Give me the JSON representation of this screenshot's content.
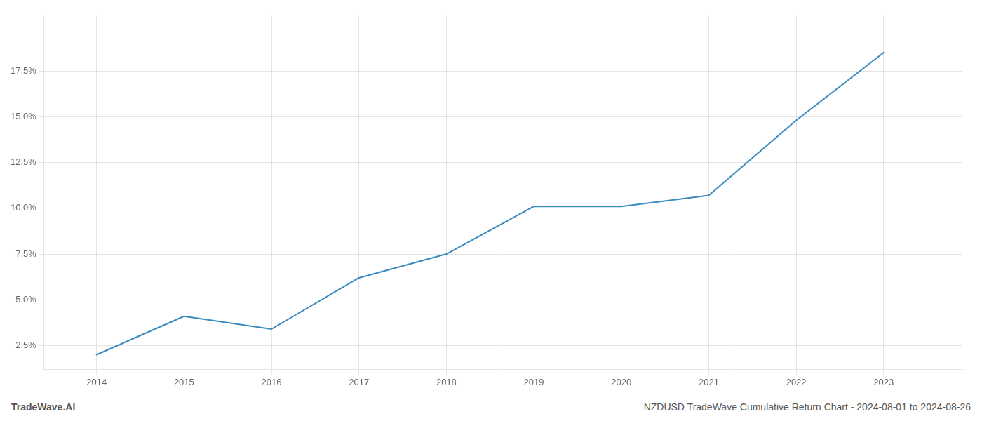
{
  "chart_data": {
    "type": "line",
    "x": [
      2014,
      2015,
      2016,
      2017,
      2018,
      2019,
      2020,
      2021,
      2022,
      2023
    ],
    "values": [
      2.0,
      4.1,
      3.4,
      6.2,
      7.5,
      10.1,
      10.1,
      10.7,
      14.8,
      18.5
    ],
    "color": "#3a8abf",
    "xlim": [
      2013.4,
      2023.9
    ],
    "ylim": [
      1.2,
      20.5
    ],
    "xticks": [
      2014,
      2015,
      2016,
      2017,
      2018,
      2019,
      2020,
      2021,
      2022,
      2023
    ],
    "yticks": [
      {
        "value": 2.5,
        "label": "2.5%"
      },
      {
        "value": 5.0,
        "label": "5.0%"
      },
      {
        "value": 7.5,
        "label": "7.5%"
      },
      {
        "value": 10.0,
        "label": "10.0%"
      },
      {
        "value": 12.5,
        "label": "12.5%"
      },
      {
        "value": 15.0,
        "label": "15.0%"
      },
      {
        "value": 17.5,
        "label": "17.5%"
      }
    ],
    "grid": true,
    "annotations": [
      "TradeWave.AI",
      "NZDUSD TradeWave Cumulative Return Chart - 2024-08-01 to 2024-08-26"
    ]
  }
}
